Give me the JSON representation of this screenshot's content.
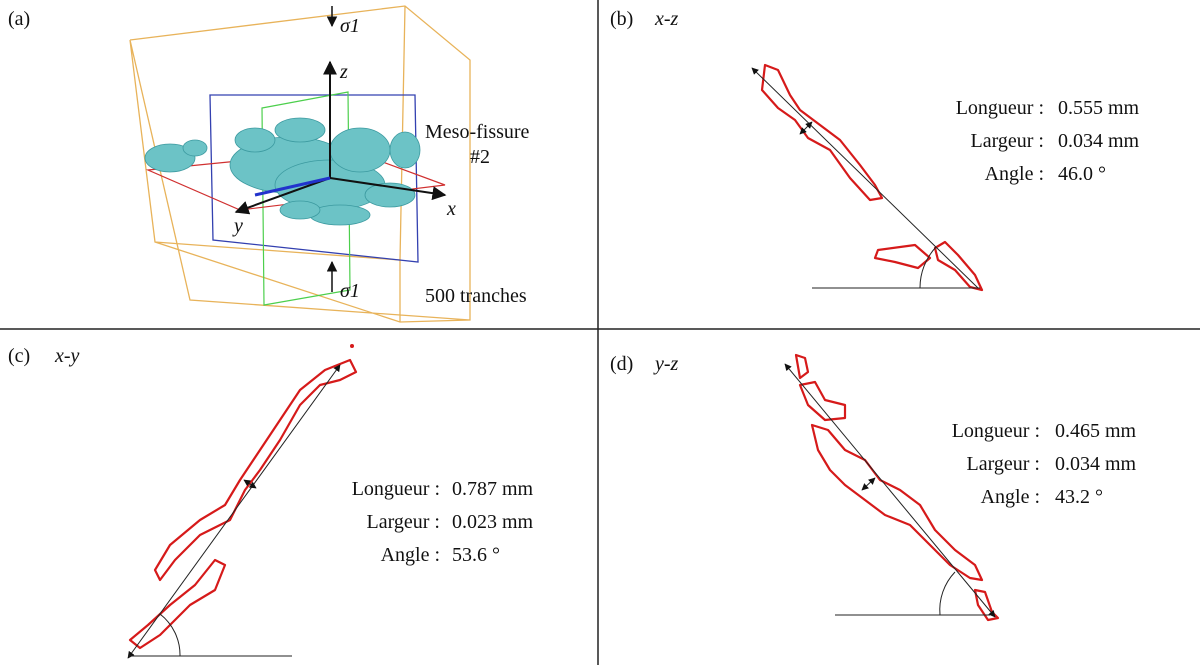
{
  "panels": [
    {
      "label": "(a)",
      "sigma_top": "σ1",
      "sigma_bottom": "σ1",
      "axis_z": "z",
      "axis_x": "x",
      "axis_y": "y",
      "annotation_line1": "Meso-fissure",
      "annotation_line2": "#2",
      "slices": "500 tranches"
    },
    {
      "label": "(b)",
      "plane": "x-z",
      "measurements": [
        {
          "label": "Longueur :",
          "value": "0.555 mm"
        },
        {
          "label": "Largeur :",
          "value": "0.034 mm"
        },
        {
          "label": "Angle :",
          "value": "46.0 °"
        }
      ]
    },
    {
      "label": "(c)",
      "plane": "x-y",
      "measurements": [
        {
          "label": "Longueur :",
          "value": "0.787 mm"
        },
        {
          "label": "Largeur :",
          "value": "0.023 mm"
        },
        {
          "label": "Angle :",
          "value": "53.6 °"
        }
      ]
    },
    {
      "label": "(d)",
      "plane": "y-z",
      "measurements": [
        {
          "label": "Longueur :",
          "value": "0.465 mm"
        },
        {
          "label": "Largeur :",
          "value": "0.034 mm"
        },
        {
          "label": "Angle :",
          "value": "43.2 °"
        }
      ]
    }
  ]
}
